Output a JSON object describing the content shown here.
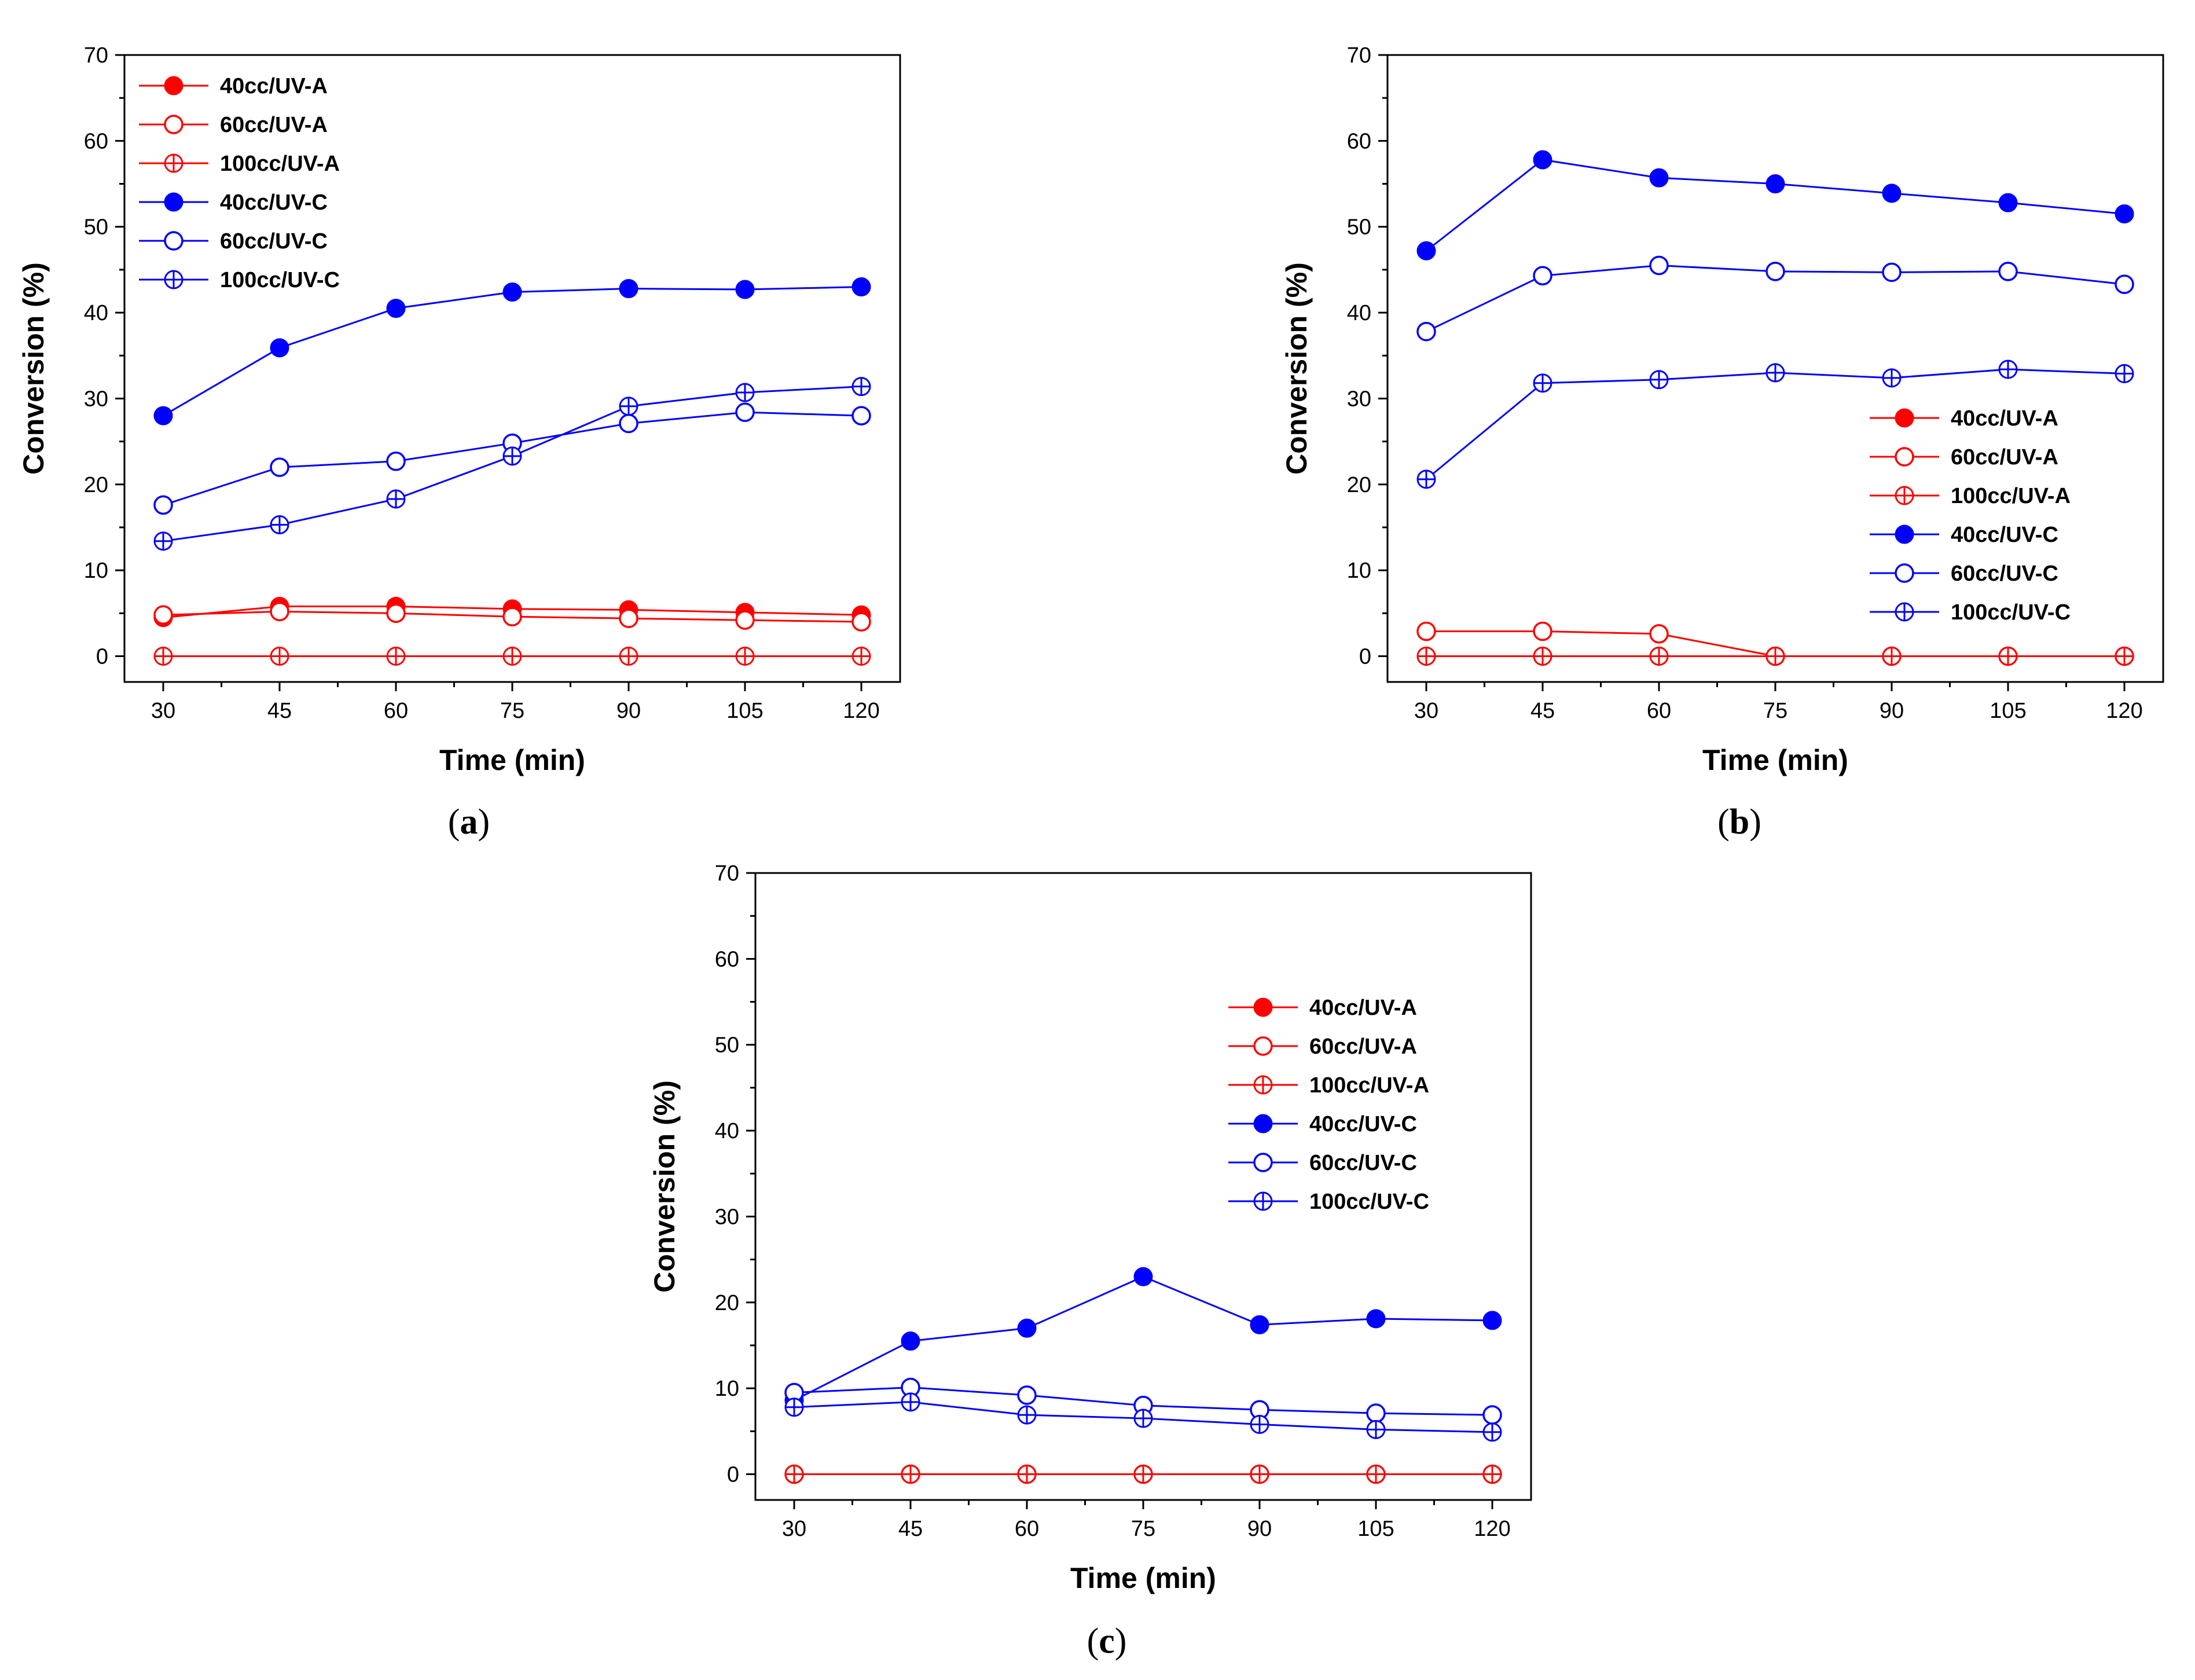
{
  "chart_data": [
    {
      "type": "line",
      "panel": "(a)",
      "panel_letter": "a",
      "xlabel": "Time (min)",
      "ylabel": "Conversion (%)",
      "xlim": [
        25,
        125
      ],
      "ylim": [
        -3,
        70
      ],
      "x": [
        30,
        45,
        60,
        75,
        90,
        105,
        120
      ],
      "x_ticks": [
        "30",
        "45",
        "60",
        "75",
        "90",
        "105",
        "120"
      ],
      "y_ticks": [
        "0",
        "10",
        "20",
        "30",
        "40",
        "50",
        "60",
        "70"
      ],
      "legend_position": "top-left",
      "series": [
        {
          "name": "40cc/UV-A",
          "color": "#ff0000",
          "marker": "filled",
          "values": [
            4.5,
            5.8,
            5.8,
            5.5,
            5.4,
            5.1,
            4.8
          ]
        },
        {
          "name": "60cc/UV-A",
          "color": "#ff0000",
          "marker": "open",
          "values": [
            4.8,
            5.2,
            5.0,
            4.6,
            4.4,
            4.2,
            4.0
          ]
        },
        {
          "name": "100cc/UV-A",
          "color": "#ff0000",
          "marker": "crossed",
          "values": [
            0,
            0,
            0,
            0,
            0,
            0,
            0
          ]
        },
        {
          "name": "40cc/UV-C",
          "color": "#0000ff",
          "marker": "filled",
          "values": [
            28.0,
            35.9,
            40.5,
            42.4,
            42.8,
            42.7,
            43.0
          ]
        },
        {
          "name": "60cc/UV-C",
          "color": "#0000ff",
          "marker": "open",
          "values": [
            17.6,
            22.0,
            22.7,
            24.8,
            27.1,
            28.4,
            28.0
          ]
        },
        {
          "name": "100cc/UV-C",
          "color": "#0000ff",
          "marker": "crossed",
          "values": [
            13.4,
            15.3,
            18.3,
            23.3,
            29.1,
            30.7,
            31.4
          ]
        }
      ]
    },
    {
      "type": "line",
      "panel": "(b)",
      "panel_letter": "b",
      "xlabel": "Time (min)",
      "ylabel": "Conversion (%)",
      "xlim": [
        25,
        125
      ],
      "ylim": [
        -3,
        70
      ],
      "x": [
        30,
        45,
        60,
        75,
        90,
        105,
        120
      ],
      "x_ticks": [
        "30",
        "45",
        "60",
        "75",
        "90",
        "105",
        "120"
      ],
      "y_ticks": [
        "0",
        "10",
        "20",
        "30",
        "40",
        "50",
        "60",
        "70"
      ],
      "legend_position": "center-right",
      "series": [
        {
          "name": "40cc/UV-A",
          "color": "#ff0000",
          "marker": "filled",
          "values": [
            0,
            0,
            0,
            0,
            0,
            0,
            0
          ]
        },
        {
          "name": "60cc/UV-A",
          "color": "#ff0000",
          "marker": "open",
          "values": [
            2.9,
            2.9,
            2.6,
            0,
            0,
            0,
            0
          ]
        },
        {
          "name": "100cc/UV-A",
          "color": "#ff0000",
          "marker": "crossed",
          "values": [
            0,
            0,
            0,
            0,
            0,
            0,
            0
          ]
        },
        {
          "name": "40cc/UV-C",
          "color": "#0000ff",
          "marker": "filled",
          "values": [
            47.2,
            57.8,
            55.7,
            55.0,
            53.9,
            52.8,
            51.5
          ]
        },
        {
          "name": "60cc/UV-C",
          "color": "#0000ff",
          "marker": "open",
          "values": [
            37.8,
            44.3,
            45.5,
            44.8,
            44.7,
            44.8,
            43.3
          ]
        },
        {
          "name": "100cc/UV-C",
          "color": "#0000ff",
          "marker": "crossed",
          "values": [
            20.6,
            31.8,
            32.2,
            33.0,
            32.4,
            33.4,
            32.9
          ]
        }
      ]
    },
    {
      "type": "line",
      "panel": "(c)",
      "panel_letter": "c",
      "xlabel": "Time (min)",
      "ylabel": "Conversion (%)",
      "xlim": [
        25,
        125
      ],
      "ylim": [
        -3,
        70
      ],
      "x": [
        30,
        45,
        60,
        75,
        90,
        105,
        120
      ],
      "x_ticks": [
        "30",
        "45",
        "60",
        "75",
        "90",
        "105",
        "120"
      ],
      "y_ticks": [
        "0",
        "10",
        "20",
        "30",
        "40",
        "50",
        "60",
        "70"
      ],
      "legend_position": "upper-center",
      "series": [
        {
          "name": "40cc/UV-A",
          "color": "#ff0000",
          "marker": "filled",
          "values": [
            0,
            0,
            0,
            0,
            0,
            0,
            0
          ]
        },
        {
          "name": "60cc/UV-A",
          "color": "#ff0000",
          "marker": "open",
          "values": [
            0,
            0,
            0,
            0,
            0,
            0,
            0
          ]
        },
        {
          "name": "100cc/UV-A",
          "color": "#ff0000",
          "marker": "crossed",
          "values": [
            0,
            0,
            0,
            0,
            0,
            0,
            0
          ]
        },
        {
          "name": "40cc/UV-C",
          "color": "#0000ff",
          "marker": "filled",
          "values": [
            8.6,
            15.5,
            17.0,
            23.0,
            17.4,
            18.1,
            17.9
          ]
        },
        {
          "name": "60cc/UV-C",
          "color": "#0000ff",
          "marker": "open",
          "values": [
            9.5,
            10.1,
            9.2,
            8.0,
            7.5,
            7.1,
            6.9
          ]
        },
        {
          "name": "100cc/UV-C",
          "color": "#0000ff",
          "marker": "crossed",
          "values": [
            7.8,
            8.4,
            6.9,
            6.5,
            5.8,
            5.2,
            4.9
          ]
        }
      ]
    }
  ]
}
